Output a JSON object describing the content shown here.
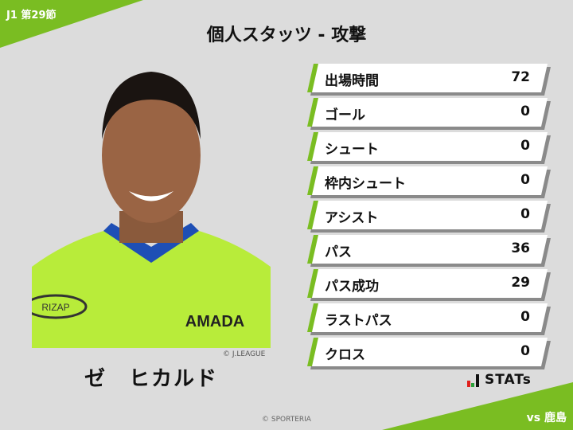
{
  "header": {
    "round": "J1 第29節",
    "title": "個人スタッツ - 攻撃",
    "opponent": "vs 鹿島"
  },
  "player": {
    "name": "ゼ　ヒカルド",
    "photo_credit": "© J.LEAGUE",
    "jersey_sponsor": "RIZAP",
    "jersey_brand": "AMADA"
  },
  "stats": [
    {
      "label": "出場時間",
      "value": "72"
    },
    {
      "label": "ゴール",
      "value": "0"
    },
    {
      "label": "シュート",
      "value": "0"
    },
    {
      "label": "枠内シュート",
      "value": "0"
    },
    {
      "label": "アシスト",
      "value": "0"
    },
    {
      "label": "パス",
      "value": "36"
    },
    {
      "label": "パス成功",
      "value": "29"
    },
    {
      "label": "ラストパス",
      "value": "0"
    },
    {
      "label": "クロス",
      "value": "0"
    }
  ],
  "brand": {
    "logo_text": "STATs",
    "footer": "© SPORTERIA"
  },
  "colors": {
    "accent": "#7abd22",
    "background": "#dcdcdc"
  }
}
